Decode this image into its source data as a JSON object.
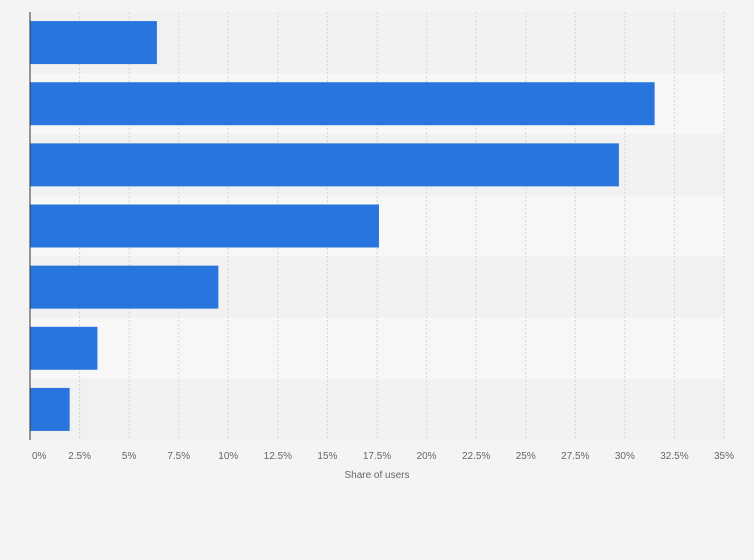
{
  "chart_data": {
    "type": "bar",
    "orientation": "horizontal",
    "title": "",
    "xlabel": "Share of users",
    "ylabel": "",
    "xlim": [
      0,
      35
    ],
    "x_ticks": [
      "0%",
      "2.5%",
      "5%",
      "7.5%",
      "10%",
      "12.5%",
      "15%",
      "17.5%",
      "20%",
      "22.5%",
      "25%",
      "27.5%",
      "30%",
      "32.5%",
      "35%"
    ],
    "categories": [
      "",
      "",
      "",
      "",
      "",
      "",
      ""
    ],
    "values": [
      6.4,
      31.5,
      29.7,
      17.6,
      9.5,
      3.4,
      2.0
    ],
    "grid": true,
    "legend": "none"
  },
  "colors": {
    "bar": "#2876dd",
    "band_light": "#f7f7f7",
    "band_dark": "#f1f1f1",
    "grid": "#d6d6d6",
    "axis": "#333333",
    "text": "#666666"
  }
}
